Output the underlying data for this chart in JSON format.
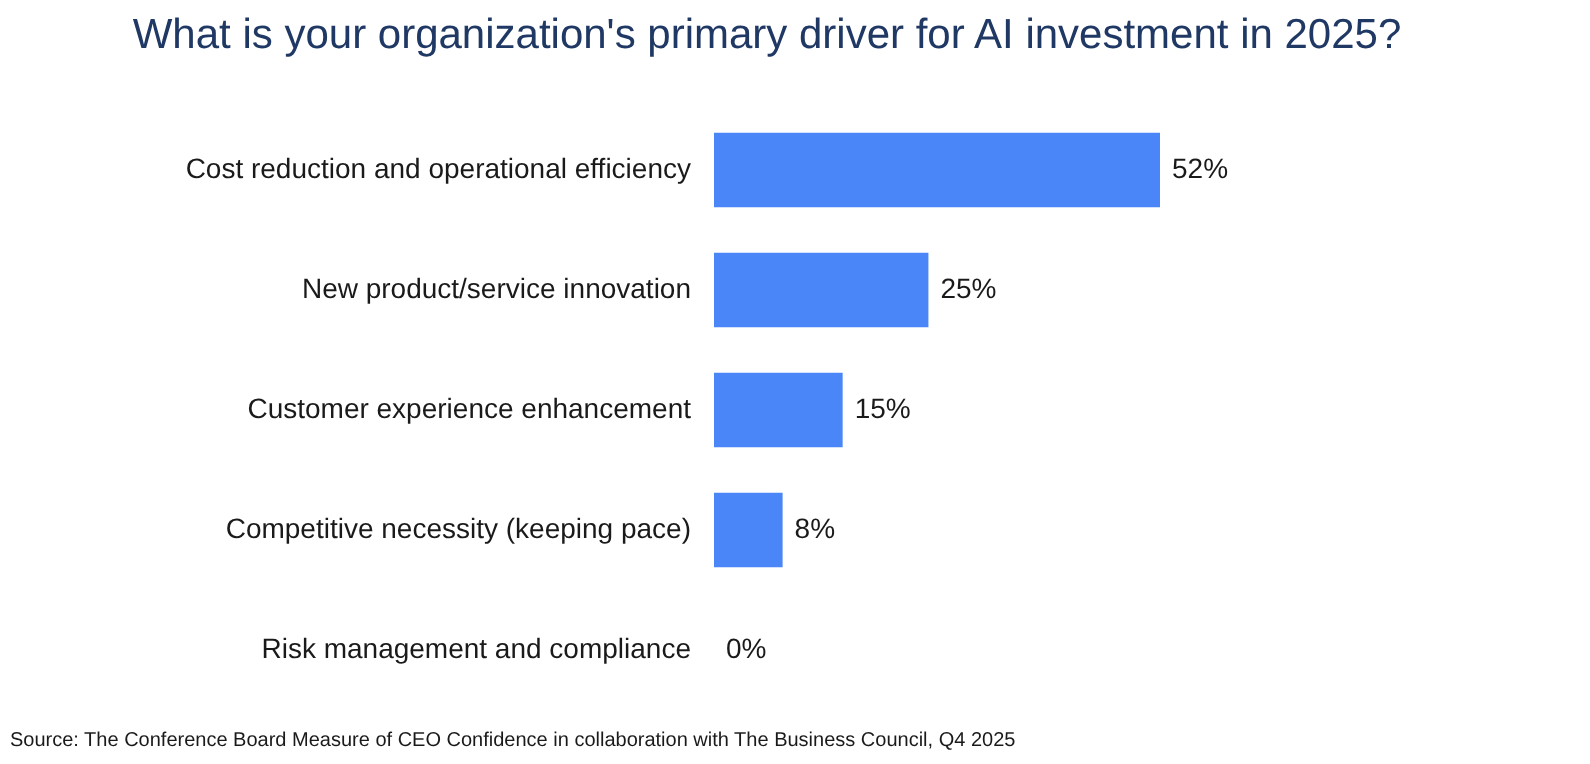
{
  "chart_data": {
    "type": "bar",
    "orientation": "horizontal",
    "title": "What is your organization's primary driver for AI investment in 2025?",
    "categories": [
      "Cost reduction and operational efficiency",
      "New product/service innovation",
      "Customer experience enhancement",
      "Competitive necessity (keeping pace)",
      "Risk management and compliance"
    ],
    "values": [
      52,
      25,
      15,
      8,
      0
    ],
    "value_labels": [
      "52%",
      "25%",
      "15%",
      "8%",
      "0%"
    ],
    "color": "#4a86f7",
    "annotations": [
      "Source: The Conference Board Measure of CEO Confidence in collaboration with The Business Council, Q4 2025"
    ]
  }
}
